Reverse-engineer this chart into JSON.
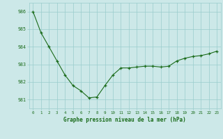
{
  "x": [
    0,
    1,
    2,
    3,
    4,
    5,
    6,
    7,
    8,
    9,
    10,
    11,
    12,
    13,
    14,
    15,
    16,
    17,
    18,
    19,
    20,
    21,
    22,
    23
  ],
  "y": [
    986.0,
    984.8,
    984.0,
    983.2,
    982.4,
    981.8,
    981.5,
    981.1,
    981.15,
    981.8,
    982.4,
    982.8,
    982.8,
    982.85,
    982.9,
    982.9,
    982.85,
    982.9,
    983.2,
    983.35,
    983.45,
    983.5,
    983.6,
    983.75
  ],
  "line_color": "#1a6b1a",
  "marker": "+",
  "marker_size": 3,
  "marker_color": "#1a6b1a",
  "bg_color": "#cce8e8",
  "grid_color": "#99cccc",
  "xlabel": "Graphe pression niveau de la mer (hPa)",
  "xlabel_color": "#1a6b1a",
  "tick_color": "#1a6b1a",
  "ylim": [
    980.5,
    986.5
  ],
  "xlim": [
    -0.5,
    23.5
  ],
  "yticks": [
    981,
    982,
    983,
    984,
    985,
    986
  ],
  "xticks": [
    0,
    1,
    2,
    3,
    4,
    5,
    6,
    7,
    8,
    9,
    10,
    11,
    12,
    13,
    14,
    15,
    16,
    17,
    18,
    19,
    20,
    21,
    22,
    23
  ]
}
